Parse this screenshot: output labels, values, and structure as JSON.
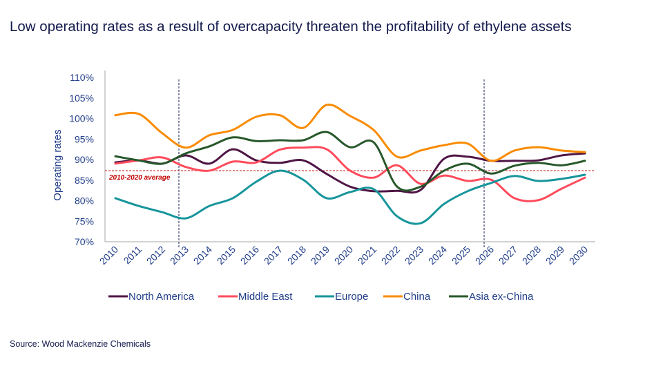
{
  "title": "Low operating rates as a result of overcapacity threaten the profitability of ethylene assets",
  "source": "Source: Wood Mackenzie Chemicals",
  "chart_data": {
    "type": "line",
    "title": "Low operating rates as a result of overcapacity threaten the profitability of ethylene assets",
    "xlabel": "",
    "ylabel": "Operating rates",
    "ylim": [
      70,
      110
    ],
    "yticks": [
      70,
      75,
      80,
      85,
      90,
      95,
      100,
      105,
      110
    ],
    "ytick_labels": [
      "70%",
      "75%",
      "80%",
      "85%",
      "90%",
      "95%",
      "100%",
      "105%",
      "110%"
    ],
    "grid": false,
    "legend": "bottom",
    "x": [
      "2010",
      "2011",
      "2012",
      "2013",
      "2014",
      "2015",
      "2016",
      "2017",
      "2018",
      "2019",
      "2020",
      "2021",
      "2022",
      "2023",
      "2024",
      "2025",
      "2026",
      "2027",
      "2028",
      "2029",
      "2030"
    ],
    "vertical_markers": [
      "2013",
      "2026"
    ],
    "reference_line": {
      "label": "2010-2020 average",
      "value": 87.3,
      "color": "#c00000"
    },
    "series": [
      {
        "name": "North America",
        "color": "#4f1545",
        "values": [
          89.3,
          89.8,
          89.0,
          91.0,
          89.0,
          92.5,
          89.8,
          89.2,
          89.8,
          86.5,
          83.4,
          82.3,
          82.4,
          82.6,
          90.2,
          90.7,
          89.7,
          89.7,
          89.8,
          91.0,
          91.5
        ]
      },
      {
        "name": "Middle East",
        "color": "#ff4b5c",
        "values": [
          89.0,
          89.8,
          90.5,
          88.2,
          87.3,
          89.5,
          89.3,
          92.4,
          92.9,
          92.5,
          87.3,
          85.6,
          88.6,
          84.1,
          86.1,
          84.8,
          85.1,
          80.6,
          80.1,
          82.9,
          85.6
        ]
      },
      {
        "name": "Europe",
        "color": "#16959b",
        "values": [
          80.6,
          78.7,
          77.2,
          75.7,
          78.7,
          80.6,
          84.6,
          87.3,
          85.1,
          80.6,
          82.1,
          82.8,
          76.2,
          74.5,
          79.2,
          82.3,
          84.3,
          86.0,
          84.8,
          85.3,
          86.3
        ]
      },
      {
        "name": "China",
        "color": "#f98b00",
        "values": [
          100.8,
          101.1,
          96.4,
          92.9,
          95.9,
          97.2,
          100.4,
          100.8,
          97.7,
          103.3,
          100.6,
          97.2,
          90.7,
          92.2,
          93.5,
          93.9,
          89.7,
          92.2,
          93.0,
          92.2,
          91.8
        ]
      },
      {
        "name": "Asia ex-China",
        "color": "#27582a",
        "values": [
          90.8,
          89.8,
          89.0,
          91.5,
          93.2,
          95.4,
          94.5,
          94.7,
          94.7,
          96.7,
          93.0,
          94.2,
          83.4,
          83.4,
          87.3,
          89.0,
          86.6,
          88.5,
          89.2,
          88.6,
          89.7
        ]
      }
    ]
  }
}
